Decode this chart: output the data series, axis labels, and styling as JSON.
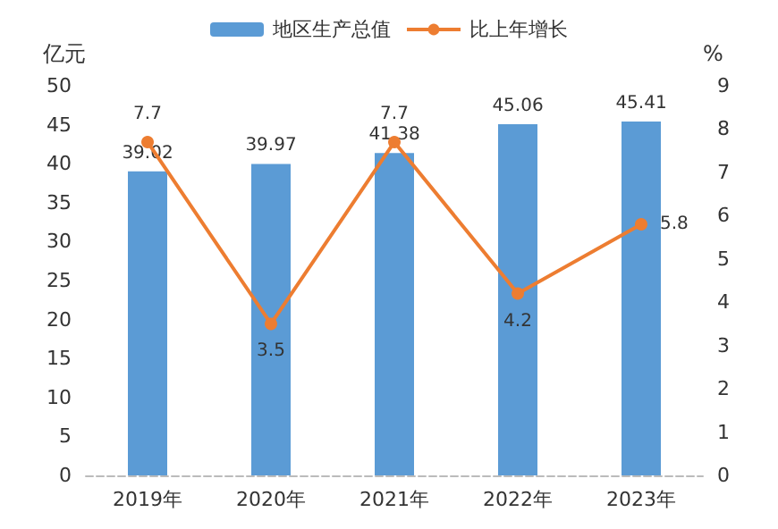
{
  "chart_data": {
    "type": "bar",
    "ylabel": "亿元",
    "y2label": "%",
    "categories": [
      "2019年",
      "2020年",
      "2021年",
      "2022年",
      "2023年"
    ],
    "series": [
      {
        "name": "地区生产总值",
        "color": "#5b9bd5",
        "values": [
          39.02,
          39.97,
          41.38,
          45.06,
          45.41
        ]
      },
      {
        "name": "比上年增长",
        "type": "line",
        "axis": "y2",
        "color": "#ed7d31",
        "values": [
          7.7,
          3.5,
          7.7,
          4.2,
          5.8
        ],
        "marker": "circle"
      }
    ],
    "ylim": [
      0,
      50
    ],
    "yticks": [
      0,
      5,
      10,
      15,
      20,
      25,
      30,
      35,
      40,
      45,
      50
    ],
    "y2lim": [
      0,
      9
    ],
    "y2ticks": [
      0,
      1,
      2,
      3,
      4,
      5,
      6,
      7,
      8,
      9
    ],
    "data_labels": true,
    "legend": "top",
    "grid": false
  }
}
